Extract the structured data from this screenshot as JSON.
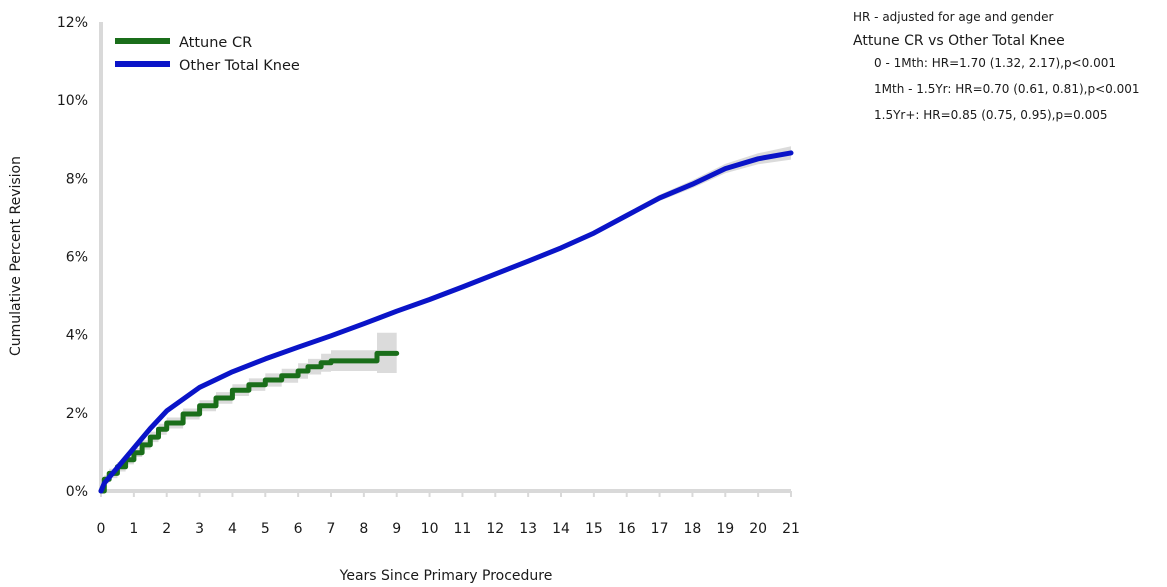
{
  "colors": {
    "attune": "#1a6e1a",
    "other": "#0a14c8",
    "ci_band": "#d9d9d9",
    "axis": "#d9d9d9"
  },
  "hr_panel": {
    "note": "HR - adjusted for age and gender",
    "comparison": "Attune CR vs Other Total Knee",
    "items": [
      "0 - 1Mth: HR=1.70 (1.32, 2.17),p<0.001",
      "1Mth - 1.5Yr: HR=0.70 (0.61, 0.81),p<0.001",
      "1.5Yr+: HR=0.85 (0.75, 0.95),p=0.005"
    ]
  },
  "chart_data": {
    "type": "line",
    "title": "",
    "xlabel": "Years Since Primary Procedure",
    "ylabel": "Cumulative Percent Revision",
    "xlim": [
      0,
      21
    ],
    "ylim": [
      0,
      12
    ],
    "x_ticks": [
      "0",
      "1",
      "2",
      "3",
      "4",
      "5",
      "6",
      "7",
      "8",
      "9",
      "10",
      "11",
      "12",
      "13",
      "14",
      "15",
      "16",
      "17",
      "18",
      "19",
      "20",
      "21"
    ],
    "y_ticks": [
      "0%",
      "2%",
      "4%",
      "6%",
      "8%",
      "10%",
      "12%"
    ],
    "legend_position": "top-left",
    "series": [
      {
        "name": "Attune CR",
        "color": "#1a6e1a",
        "step": true,
        "x": [
          0,
          0.1,
          0.25,
          0.5,
          0.75,
          1.0,
          1.25,
          1.5,
          1.75,
          2.0,
          2.5,
          3.0,
          3.5,
          4.0,
          4.5,
          5.0,
          5.5,
          6.0,
          6.3,
          6.7,
          7.0,
          7.5,
          8.0,
          8.3,
          8.4,
          9.0
        ],
        "y": [
          0,
          0.3,
          0.45,
          0.62,
          0.8,
          0.98,
          1.18,
          1.38,
          1.58,
          1.74,
          1.97,
          2.18,
          2.38,
          2.58,
          2.72,
          2.84,
          2.95,
          3.07,
          3.18,
          3.28,
          3.33,
          3.33,
          3.33,
          3.33,
          3.52,
          3.52
        ],
        "ci_lower": [
          0,
          0.2,
          0.33,
          0.5,
          0.68,
          0.87,
          1.06,
          1.25,
          1.44,
          1.6,
          1.83,
          2.04,
          2.23,
          2.43,
          2.56,
          2.67,
          2.77,
          2.87,
          2.98,
          3.05,
          3.07,
          3.07,
          3.07,
          3.07,
          3.02,
          3.02
        ],
        "ci_upper": [
          0,
          0.4,
          0.57,
          0.74,
          0.92,
          1.1,
          1.3,
          1.52,
          1.72,
          1.88,
          2.11,
          2.32,
          2.53,
          2.73,
          2.88,
          3.01,
          3.13,
          3.27,
          3.38,
          3.51,
          3.6,
          3.6,
          3.6,
          3.6,
          4.05,
          4.05
        ]
      },
      {
        "name": "Other Total Knee",
        "color": "#0a14c8",
        "step": false,
        "x": [
          0,
          0.1,
          0.5,
          1.0,
          1.5,
          2.0,
          3.0,
          4.0,
          5.0,
          6.0,
          7.0,
          8.0,
          9.0,
          10.0,
          11.0,
          12.0,
          13.0,
          14.0,
          15.0,
          16.0,
          17.0,
          18.0,
          19.0,
          20.0,
          21.0
        ],
        "y": [
          0,
          0.2,
          0.6,
          1.1,
          1.6,
          2.05,
          2.65,
          3.05,
          3.38,
          3.68,
          3.97,
          4.28,
          4.6,
          4.9,
          5.22,
          5.55,
          5.88,
          6.22,
          6.6,
          7.05,
          7.5,
          7.85,
          8.25,
          8.5,
          8.65
        ],
        "ci_lower": [
          0,
          0.18,
          0.57,
          1.07,
          1.57,
          2.02,
          2.61,
          3.01,
          3.34,
          3.64,
          3.93,
          4.24,
          4.56,
          4.86,
          5.17,
          5.5,
          5.83,
          6.16,
          6.54,
          6.98,
          7.42,
          7.75,
          8.13,
          8.36,
          8.48
        ],
        "ci_upper": [
          0,
          0.22,
          0.63,
          1.13,
          1.63,
          2.08,
          2.69,
          3.09,
          3.42,
          3.72,
          4.01,
          4.32,
          4.64,
          4.94,
          5.27,
          5.6,
          5.93,
          6.28,
          6.66,
          7.12,
          7.58,
          7.95,
          8.37,
          8.64,
          8.82
        ]
      }
    ]
  }
}
